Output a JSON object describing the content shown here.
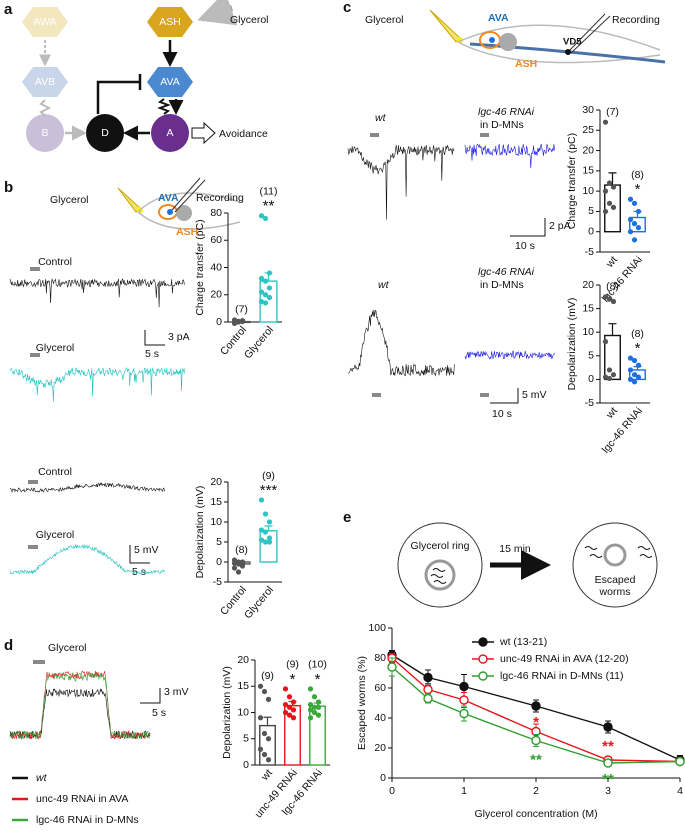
{
  "panel_labels": [
    "a",
    "b",
    "c",
    "d",
    "e"
  ],
  "diagram_a": {
    "nodes": [
      "AWA",
      "ASH",
      "AVB",
      "AVA",
      "B",
      "D",
      "A"
    ],
    "stimulus": "Glycerol",
    "output": "Avoidance"
  },
  "panel_b": {
    "schematic": {
      "stimulus": "Glycerol",
      "neuron1": "AVA",
      "neuron2": "ASH",
      "probe": "Recording"
    },
    "traces": [
      "Control",
      "Glycerol",
      "Control",
      "Glycerol"
    ],
    "scale_bars": [
      "5 s",
      "3 pA",
      "5 s",
      "5 mV"
    ]
  },
  "panel_c": {
    "schematic": {
      "stimulus": "Glycerol",
      "neuron1": "AVA",
      "neuron2": "ASH",
      "probe": "Recording",
      "motor_neuron": "VD5"
    },
    "trace_labels": [
      "wt",
      [
        "lgc-46 RNAi",
        "in D-MNs"
      ],
      "wt",
      [
        "lgc-46 RNAi",
        "in D-MNs"
      ]
    ],
    "scale_bars": [
      "2 pA",
      "10 s",
      "5 mV",
      "10 s"
    ]
  },
  "panel_d": {
    "stimulus": "Glycerol",
    "scale_bars": [
      "3 mV",
      "5 s"
    ],
    "legend": [
      "wt",
      "unc-49 RNAi in AVA",
      "lgc-46 RNAi in D-MNs"
    ]
  },
  "panel_e": {
    "schematic": {
      "ring": "Glycerol ring",
      "time": "15 min",
      "escaped": [
        "Escaped",
        "worms"
      ]
    }
  },
  "chart_data": [
    {
      "type": "bar",
      "ylabel": "Charge transfer (pC)",
      "categories": [
        "Control",
        "Glycerol"
      ],
      "values": [
        0.3,
        30
      ],
      "errors": [
        0.3,
        6
      ],
      "points": [
        [
          0,
          0.5,
          1,
          -1,
          0,
          0.3,
          1.5
        ],
        [
          78,
          76,
          36,
          32,
          30,
          25,
          22,
          20,
          18,
          15,
          14
        ]
      ],
      "n_labels": [
        "(7)",
        "(11)"
      ],
      "significance": [
        null,
        "**"
      ],
      "colors": [
        "#555555",
        "#2ec4c4"
      ],
      "point_colors": [
        "#555555",
        "#2ec4c4"
      ],
      "ylim": [
        0,
        80
      ],
      "yticks": [
        0,
        20,
        40,
        60,
        80
      ]
    },
    {
      "type": "bar",
      "ylabel": "Depolarization (mV)",
      "categories": [
        "Control",
        "Glycerol"
      ],
      "values": [
        -0.5,
        7.8
      ],
      "errors": [
        0.3,
        1.2
      ],
      "points": [
        [
          0.5,
          0,
          0,
          -0.3,
          -0.5,
          -1,
          -1.5,
          -2.5
        ],
        [
          15.5,
          12,
          10,
          8,
          7.5,
          6,
          5.5,
          5,
          5
        ]
      ],
      "n_labels": [
        "(8)",
        "(9)"
      ],
      "significance": [
        null,
        "***"
      ],
      "colors": [
        "#555555",
        "#2ec4c4"
      ],
      "point_colors": [
        "#555555",
        "#2ec4c4"
      ],
      "ylim": [
        -5,
        20
      ],
      "yticks": [
        -5,
        0,
        5,
        10,
        15,
        20
      ]
    },
    {
      "type": "bar",
      "ylabel": "Charge transfer (pC)",
      "categories": [
        "wt",
        "lgc-46 RNAi"
      ],
      "values": [
        11.5,
        3.5
      ],
      "errors": [
        3,
        1.5
      ],
      "points": [
        [
          27,
          12,
          11,
          10,
          7,
          6,
          5
        ],
        [
          8,
          7,
          5,
          3,
          2,
          1,
          0,
          -2
        ]
      ],
      "n_labels": [
        "(7)",
        "(8)"
      ],
      "significance": [
        null,
        "*"
      ],
      "colors": [
        "#111111",
        "#1f6fe0"
      ],
      "point_colors": [
        "#555555",
        "#1f6fe0"
      ],
      "ylim": [
        -5,
        30
      ],
      "yticks": [
        -5,
        0,
        5,
        10,
        15,
        20,
        25,
        30
      ]
    },
    {
      "type": "bar",
      "ylabel": "Depolarization (mV)",
      "categories": [
        "wt",
        "lgc-46 RNAi"
      ],
      "values": [
        9.3,
        2
      ],
      "errors": [
        2.5,
        0.7
      ],
      "points": [
        [
          17.5,
          17,
          16.5,
          8,
          2,
          1,
          0.5,
          0.2
        ],
        [
          4.5,
          4,
          3,
          2,
          1,
          0.5,
          0,
          -0.5
        ]
      ],
      "n_labels": [
        "(8)",
        "(8)"
      ],
      "significance": [
        null,
        "*"
      ],
      "colors": [
        "#111111",
        "#1f6fe0"
      ],
      "point_colors": [
        "#555555",
        "#1f6fe0"
      ],
      "ylim": [
        -5,
        20
      ],
      "yticks": [
        -5,
        0,
        5,
        10,
        15,
        20
      ]
    },
    {
      "type": "bar",
      "ylabel": "Depolarization (mV)",
      "categories": [
        "wt",
        "unc-49 RNAi",
        "lgc-46 RNAi"
      ],
      "values": [
        7.5,
        11.3,
        11.2
      ],
      "errors": [
        1.6,
        0.8,
        0.6
      ],
      "points": [
        [
          15,
          14,
          12.5,
          9,
          6,
          5,
          3,
          2,
          1
        ],
        [
          14.5,
          13,
          12,
          11.5,
          11,
          10.5,
          10,
          9.5,
          9
        ],
        [
          14.5,
          13,
          12,
          11.5,
          11,
          11,
          10.5,
          10,
          9.5,
          9
        ]
      ],
      "n_labels": [
        "(9)",
        "(9)",
        "(10)"
      ],
      "significance": [
        null,
        "*",
        "*"
      ],
      "colors": [
        "#444444",
        "#e8141c",
        "#3aa83a"
      ],
      "point_colors": [
        "#555555",
        "#e8141c",
        "#3aa83a"
      ],
      "ylim": [
        0,
        20
      ],
      "yticks": [
        0,
        5,
        10,
        15,
        20
      ]
    },
    {
      "type": "line",
      "xlabel": "Glycerol concentration (M)",
      "ylabel": "Escaped worms (%)",
      "x": [
        0,
        0.5,
        1,
        2,
        3,
        4
      ],
      "xlim": [
        0,
        4
      ],
      "xticks": [
        0,
        1,
        2,
        3,
        4
      ],
      "ylim": [
        0,
        100
      ],
      "yticks": [
        0,
        20,
        40,
        60,
        80,
        100
      ],
      "legend": "top-right",
      "series": [
        {
          "name": "wt (13-21)",
          "color": "#111111",
          "filled": true,
          "values": [
            82,
            67,
            61,
            48,
            34,
            12
          ],
          "errors": [
            3,
            5,
            8,
            4,
            4,
            3
          ],
          "significance": [
            null,
            null,
            null,
            null,
            null,
            null
          ]
        },
        {
          "name": "unc-49 RNAi in AVA (12-20)",
          "color": "#e8141c",
          "filled": false,
          "values": [
            80,
            59,
            52,
            31,
            12,
            11
          ],
          "errors": [
            3,
            4,
            5,
            5,
            2,
            1
          ],
          "significance": [
            null,
            null,
            null,
            "*",
            "**",
            null
          ]
        },
        {
          "name": "lgc-46 RNAi in D-MNs (11)",
          "color": "#2e9e2e",
          "filled": false,
          "values": [
            74,
            53,
            43,
            25,
            10,
            11
          ],
          "errors": [
            6,
            3,
            5,
            4,
            2,
            1
          ],
          "significance": [
            null,
            null,
            null,
            "**",
            "**",
            null
          ]
        }
      ]
    }
  ]
}
